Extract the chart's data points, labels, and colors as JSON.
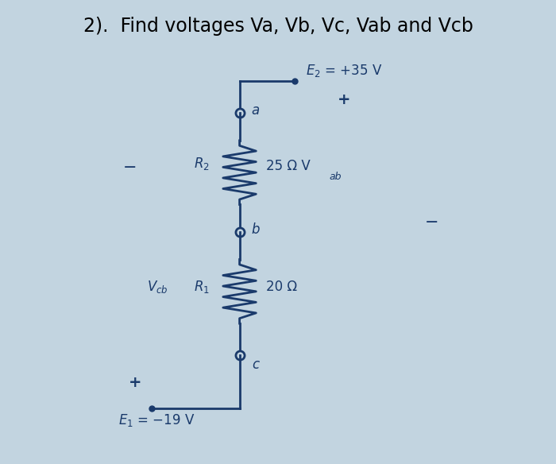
{
  "title": "2).  Find voltages Va, Vb, Vc, Vab and Vcb",
  "title_fontsize": 17,
  "bg_color": "#c2d4e0",
  "circuit_color": "#1a3a6b",
  "E2_label": "$E_2$ = +35 V",
  "E1_label": "$E_1$ = −19 V",
  "R2_label": "$R_2$",
  "R1_label": "$R_1$",
  "R2_val": "25 Ω V",
  "Vab_sub": "ab",
  "R1_val": "20 Ω",
  "Vcb_V": "$V_{cb}$",
  "R1_left": "$R_1$",
  "plus_e2": "+",
  "minus_left": "−",
  "minus_right": "−",
  "plus_e1": "+"
}
